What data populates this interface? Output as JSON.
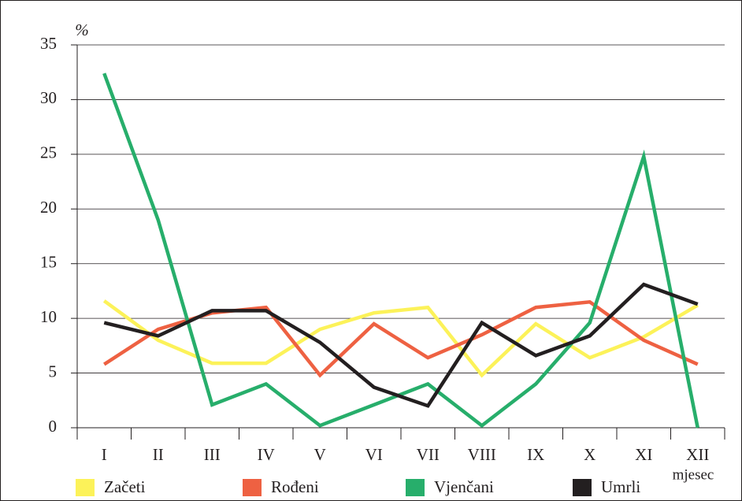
{
  "chart_data": {
    "type": "line",
    "y_label": "%",
    "x_label": "mjesec",
    "categories": [
      "I",
      "II",
      "III",
      "IV",
      "V",
      "VI",
      "VII",
      "VIII",
      "IX",
      "X",
      "XI",
      "XII"
    ],
    "series": [
      {
        "name": "Začeti",
        "color": "#fcf259",
        "values": [
          11.6,
          8,
          5.9,
          5.9,
          9,
          10.5,
          11,
          4.8,
          9.5,
          6.4,
          8.3,
          11.2
        ]
      },
      {
        "name": "Rođeni",
        "color": "#ee6142",
        "values": [
          5.8,
          9,
          10.5,
          11,
          4.8,
          9.5,
          6.4,
          8.5,
          11,
          11.5,
          8,
          5.8
        ]
      },
      {
        "name": "Vjenčani",
        "color": "#27ae6b",
        "values": [
          32.4,
          19,
          2.1,
          4,
          0.2,
          2.1,
          4,
          0.2,
          4,
          9.6,
          24.8,
          0
        ]
      },
      {
        "name": "Umrli",
        "color": "#231f20",
        "values": [
          9.6,
          8.4,
          10.7,
          10.7,
          7.8,
          3.7,
          2,
          9.6,
          6.6,
          8.4,
          13.1,
          11.3
        ]
      }
    ],
    "ylim": [
      0,
      35
    ],
    "yticks": [
      0,
      5,
      10,
      15,
      20,
      25,
      30,
      35
    ],
    "grid": true
  }
}
